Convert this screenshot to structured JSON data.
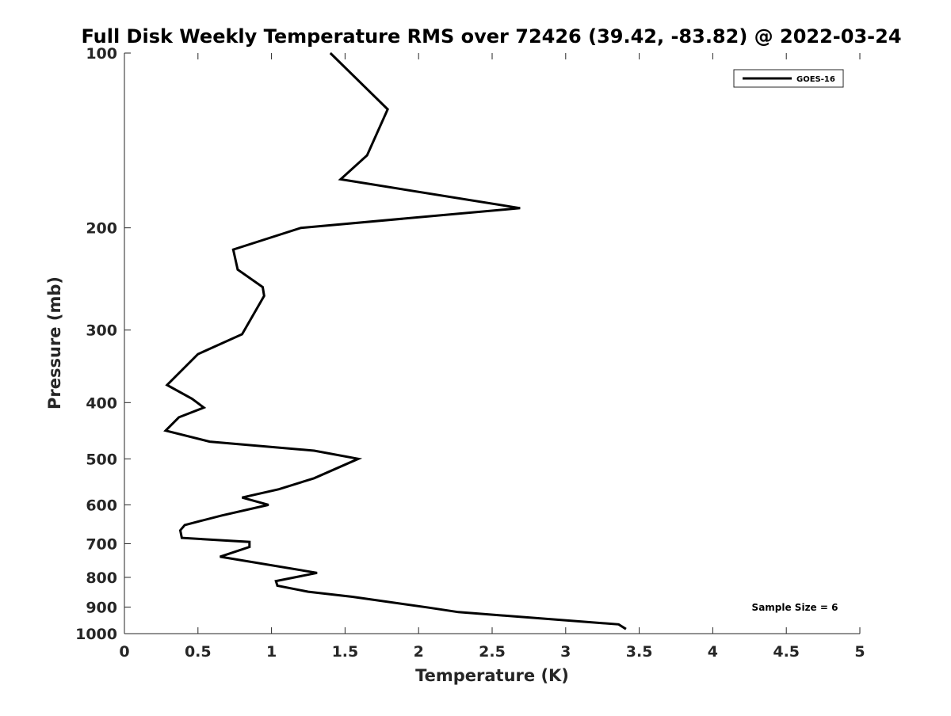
{
  "chart_data": {
    "type": "line",
    "title": "Full Disk Weekly Temperature RMS over 72426 (39.42, -83.82) @ 2022-03-24",
    "xlabel": "Temperature (K)",
    "ylabel": "Pressure (mb)",
    "xlim": [
      0,
      5
    ],
    "ylim": [
      100,
      1000
    ],
    "y_scale": "log",
    "y_reversed": true,
    "x_ticks": [
      0,
      0.5,
      1,
      1.5,
      2,
      2.5,
      3,
      3.5,
      4,
      4.5,
      5
    ],
    "x_tick_labels": [
      "0",
      "0.5",
      "1",
      "1.5",
      "2",
      "2.5",
      "3",
      "3.5",
      "4",
      "4.5",
      "5"
    ],
    "y_ticks": [
      100,
      200,
      300,
      400,
      500,
      600,
      700,
      800,
      900,
      1000
    ],
    "y_tick_labels": [
      "100",
      "200",
      "300",
      "400",
      "500",
      "600",
      "700",
      "800",
      "900",
      "1000"
    ],
    "grid": false,
    "legend_position": "top-right",
    "annotation": "Sample Size = 6",
    "series": [
      {
        "name": "GOES-16",
        "color": "#000000",
        "points": [
          [
            1.4,
            100
          ],
          [
            1.79,
            125
          ],
          [
            1.65,
            150
          ],
          [
            1.47,
            165
          ],
          [
            2.69,
            185
          ],
          [
            1.2,
            200
          ],
          [
            0.74,
            218
          ],
          [
            0.77,
            236
          ],
          [
            0.94,
            253
          ],
          [
            0.95,
            262
          ],
          [
            0.8,
            305
          ],
          [
            0.5,
            330
          ],
          [
            0.29,
            373
          ],
          [
            0.46,
            394
          ],
          [
            0.54,
            408
          ],
          [
            0.37,
            424
          ],
          [
            0.28,
            447
          ],
          [
            0.58,
            467
          ],
          [
            1.29,
            484
          ],
          [
            1.59,
            500
          ],
          [
            1.29,
            540
          ],
          [
            1.05,
            564
          ],
          [
            0.8,
            583
          ],
          [
            0.98,
            600
          ],
          [
            0.66,
            626
          ],
          [
            0.41,
            650
          ],
          [
            0.38,
            664
          ],
          [
            0.39,
            684
          ],
          [
            0.85,
            695
          ],
          [
            0.85,
            709
          ],
          [
            0.65,
            737
          ],
          [
            1.31,
            786
          ],
          [
            1.03,
            812
          ],
          [
            1.04,
            827
          ],
          [
            1.25,
            847
          ],
          [
            1.55,
            864
          ],
          [
            2.07,
            902
          ],
          [
            2.27,
            918
          ],
          [
            3.36,
            964
          ],
          [
            3.41,
            982
          ]
        ]
      }
    ]
  }
}
